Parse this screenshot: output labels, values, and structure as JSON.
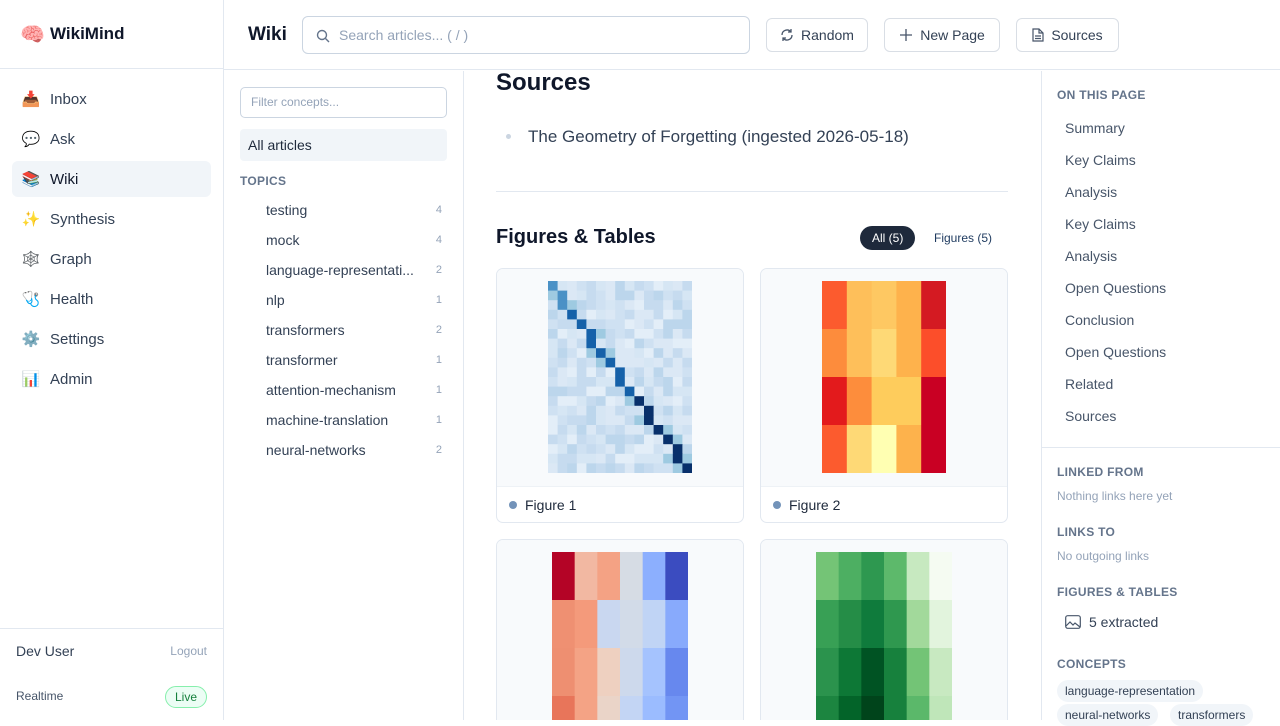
{
  "sidebar": {
    "brand_icon": "🧠",
    "brand": "WikiMind",
    "nav": [
      {
        "icon": "📥",
        "label": "Inbox"
      },
      {
        "icon": "💬",
        "label": "Ask"
      },
      {
        "icon": "📚",
        "label": "Wiki"
      },
      {
        "icon": "✨",
        "label": "Synthesis"
      },
      {
        "icon": "🕸️",
        "label": "Graph"
      },
      {
        "icon": "🩺",
        "label": "Health"
      },
      {
        "icon": "⚙️",
        "label": "Settings"
      },
      {
        "icon": "📊",
        "label": "Admin"
      }
    ],
    "user": "Dev User",
    "logout": "Logout",
    "status_label": "Realtime",
    "status": "Live"
  },
  "topbar": {
    "title": "Wiki",
    "search_placeholder": "Search articles... ( / )",
    "buttons": [
      "Random",
      "New Page",
      "Sources"
    ]
  },
  "concepts": {
    "filter_placeholder": "Filter concepts...",
    "all_articles": "All articles",
    "topics_heading": "TOPICS",
    "topics": [
      {
        "name": "testing",
        "count": 4
      },
      {
        "name": "mock",
        "count": 4
      },
      {
        "name": "language-representati...",
        "count": 2
      },
      {
        "name": "nlp",
        "count": 1
      },
      {
        "name": "transformers",
        "count": 2
      },
      {
        "name": "transformer",
        "count": 1
      },
      {
        "name": "attention-mechanism",
        "count": 1
      },
      {
        "name": "machine-translation",
        "count": 1
      },
      {
        "name": "neural-networks",
        "count": 2
      }
    ]
  },
  "main": {
    "sources_heading": "Sources",
    "sources": [
      "The Geometry of Forgetting (ingested 2026-05-18)"
    ],
    "figures_heading": "Figures & Tables",
    "filters": [
      "All (5)",
      "Figures (5)"
    ],
    "figures": [
      {
        "caption": "Figure 1"
      },
      {
        "caption": "Figure 2"
      }
    ]
  },
  "right": {
    "toc_heading": "ON THIS PAGE",
    "toc": [
      "Summary",
      "Key Claims",
      "Analysis",
      "Key Claims",
      "Analysis",
      "Open Questions",
      "Conclusion",
      "Open Questions",
      "Related",
      "Sources"
    ],
    "linked_from_heading": "LINKED FROM",
    "linked_from_empty": "Nothing links here yet",
    "links_to_heading": "LINKS TO",
    "links_to_empty": "No outgoing links",
    "figures_heading": "FIGURES & TABLES",
    "figures_count": "5 extracted",
    "concepts_heading": "CONCEPTS",
    "concepts": [
      "language-representation",
      "neural-networks",
      "transformers"
    ]
  }
}
